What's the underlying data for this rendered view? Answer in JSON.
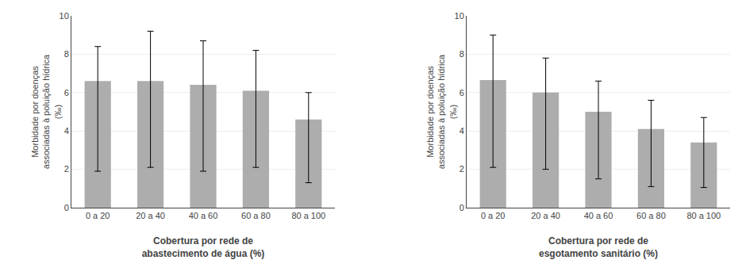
{
  "chart_data": [
    {
      "type": "bar",
      "categories": [
        "0 a 20",
        "20 a 40",
        "40 a 60",
        "60 a 80",
        "80 a 100"
      ],
      "values": [
        6.6,
        6.6,
        6.4,
        6.1,
        4.6
      ],
      "err_upper": [
        1.8,
        2.6,
        2.3,
        2.1,
        1.4
      ],
      "err_lower": [
        4.7,
        4.5,
        4.5,
        4.0,
        3.3
      ],
      "xlabel": "Cobertura por rede de\nabastecimento de água (%)",
      "ylabel": "Morbidade por doenças\nassociadas à poluição hídrica\n(‰)",
      "color": "#adadad",
      "ylim": [
        0,
        10
      ],
      "yticks": [
        0,
        2,
        4,
        6,
        8,
        10
      ],
      "grid": true
    },
    {
      "type": "bar",
      "categories": [
        "0 a 20",
        "20 a 40",
        "40 a 60",
        "60 a 80",
        "80 a 100"
      ],
      "values": [
        6.65,
        6.0,
        5.0,
        4.1,
        3.4
      ],
      "err_upper": [
        2.35,
        1.8,
        1.6,
        1.5,
        1.3
      ],
      "err_lower": [
        4.55,
        4.0,
        3.5,
        3.0,
        2.35
      ],
      "xlabel": "Cobertura por rede de\nesgotamento sanitário (%)",
      "ylabel": "Morbidade por doenças\nassociadas à poluição hídrica\n(‰)",
      "color": "#adadad",
      "ylim": [
        0,
        10
      ],
      "yticks": [
        0,
        2,
        4,
        6,
        8,
        10
      ],
      "grid": true
    }
  ]
}
